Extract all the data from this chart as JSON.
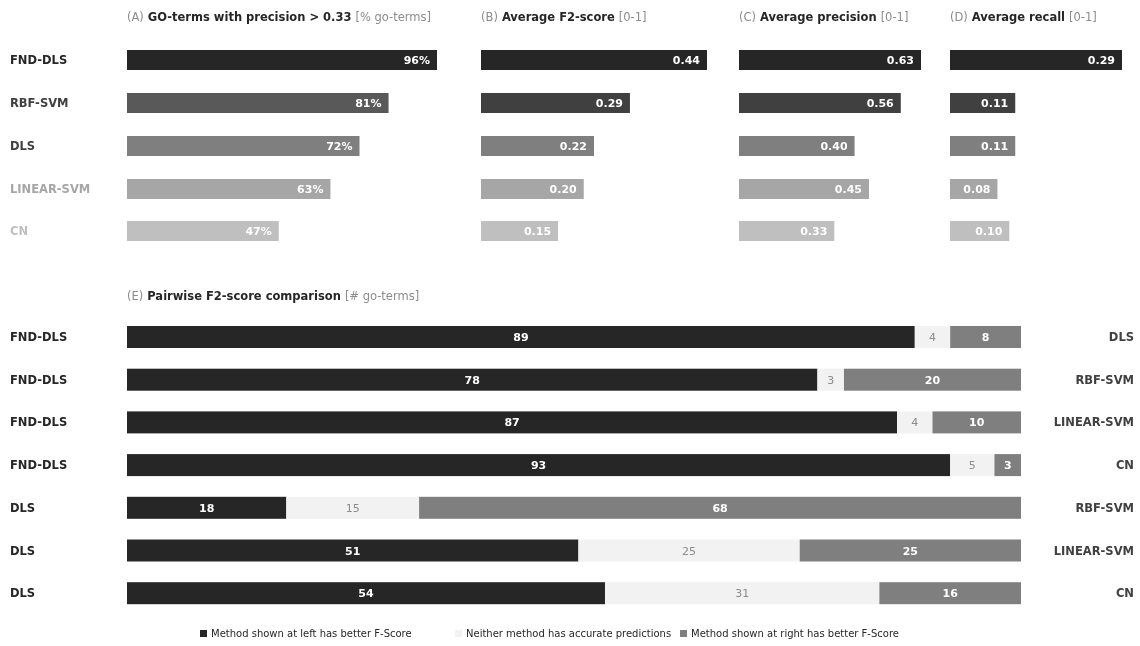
{
  "chart_data": [
    {
      "type": "bar",
      "orientation": "horizontal",
      "title": "(A) GO-terms with precision > 0.33 [% go-terms]",
      "categories": [
        "FND-DLS",
        "RBF-SVM",
        "DLS",
        "LINEAR-SVM",
        "CN"
      ],
      "values": [
        96,
        81,
        72,
        63,
        47
      ],
      "colors": [
        "#262626",
        "#595959",
        "#7f7f7f",
        "#a6a6a6",
        "#bfbfbf"
      ],
      "value_labels": [
        "96%",
        "81%",
        "72%",
        "63%",
        "47%"
      ]
    },
    {
      "type": "bar",
      "orientation": "horizontal",
      "title": "(B) Average F2-score [0-1]",
      "categories": [
        null,
        null,
        null,
        null,
        null
      ],
      "values": [
        0.44,
        0.29,
        0.22,
        0.2,
        0.15
      ],
      "colors": [
        "#262626",
        "#404040",
        "#7f7f7f",
        "#a6a6a6",
        "#bfbfbf"
      ],
      "value_labels": [
        "0.44",
        "0.29",
        "0.22",
        "0.20",
        "0.15"
      ]
    },
    {
      "type": "bar",
      "orientation": "horizontal",
      "title": "(C) Average precision [0-1]",
      "categories": [
        null,
        null,
        null,
        null,
        null
      ],
      "values": [
        0.63,
        0.56,
        0.4,
        0.45,
        0.33
      ],
      "colors": [
        "#262626",
        "#404040",
        "#7f7f7f",
        "#a6a6a6",
        "#bfbfbf"
      ],
      "value_labels": [
        "0.63",
        "0.56",
        "0.40",
        "0.45",
        "0.33"
      ]
    },
    {
      "type": "bar",
      "orientation": "horizontal",
      "title": "(D) Average recall [0-1]",
      "categories": [
        null,
        null,
        null,
        null,
        null
      ],
      "values": [
        0.29,
        0.11,
        0.11,
        0.08,
        0.1
      ],
      "colors": [
        "#262626",
        "#404040",
        "#7f7f7f",
        "#a6a6a6",
        "#bfbfbf"
      ],
      "value_labels": [
        "0.29",
        "0.11",
        "0.11",
        "0.08",
        "0.10"
      ]
    },
    {
      "type": "bar",
      "orientation": "horizontal",
      "stacked": true,
      "data_labels": true,
      "legend": "bottom",
      "title": "(E) Pairwise F2-score comparison [# go-terms]",
      "categories": [
        "FND-DLS",
        "FND-DLS",
        "FND-DLS",
        "FND-DLS",
        "DLS",
        "DLS",
        "DLS"
      ],
      "y2_categories": [
        "DLS",
        "RBF-SVM",
        "LINEAR-SVM",
        "CN",
        "RBF-SVM",
        "LINEAR-SVM",
        "CN"
      ],
      "series": [
        {
          "name": "Method shown at left has better F-Score",
          "color": "#262626",
          "values": [
            89,
            78,
            87,
            93,
            18,
            51,
            54
          ]
        },
        {
          "name": "Neither method has accurate predictions",
          "color": "#f2f2f2",
          "values": [
            4,
            3,
            4,
            5,
            15,
            25,
            31
          ]
        },
        {
          "name": "Method shown at right has better F-Score",
          "color": "#7f7f7f",
          "values": [
            8,
            20,
            10,
            3,
            68,
            25,
            16
          ]
        }
      ]
    }
  ]
}
